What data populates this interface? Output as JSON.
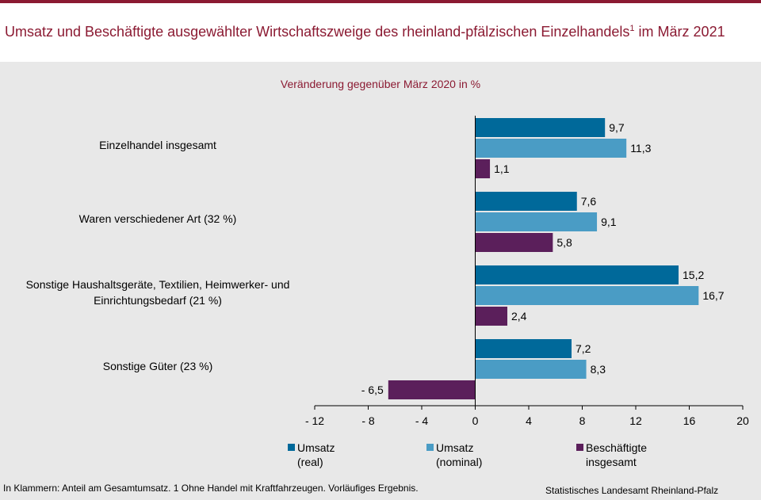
{
  "header": {
    "title": "Umsatz und Beschäftigte ausgewählter Wirtschaftszweige des rheinland-pfälzischen Einzelhandels",
    "title_sup": "1",
    "title_tail": " im März 2021"
  },
  "chart_data": {
    "type": "bar",
    "orientation": "horizontal",
    "title": "Umsatz und Beschäftigte ausgewählter Wirtschaftszweige des rheinland-pfälzischen Einzelhandels¹ im März 2021",
    "subtitle": "Veränderung gegenüber März 2020 in %",
    "categories": [
      "Einzelhandel insgesamt",
      "Waren verschiedener Art (32 %)",
      "Sonstige Haushaltsgeräte, Textilien, Heimwerker- und\nEinrichtungsbedarf (21 %)",
      "Sonstige Güter (23 %)"
    ],
    "series": [
      {
        "name": "Umsatz\n(real)",
        "color": "#00699a",
        "values": [
          9.7,
          7.6,
          15.2,
          7.2
        ],
        "labels": [
          "9,7",
          "7,6",
          "15,2",
          "7,2"
        ]
      },
      {
        "name": "Umsatz\n(nominal)",
        "color": "#4a9cc5",
        "values": [
          11.3,
          9.1,
          16.7,
          8.3
        ],
        "labels": [
          "11,3",
          "9,1",
          "16,7",
          "8,3"
        ]
      },
      {
        "name": "Beschäftigte\ninsgesamt",
        "color": "#5b1f5b",
        "values": [
          1.1,
          5.8,
          2.4,
          -6.5
        ],
        "labels": [
          "1,1",
          "5,8",
          "2,4",
          "- 6,5"
        ]
      }
    ],
    "xlim": [
      -12,
      20
    ],
    "xticks": [
      -12,
      -8,
      -4,
      0,
      4,
      8,
      12,
      16,
      20
    ],
    "xtick_labels": [
      "- 12",
      "- 8",
      "- 4",
      "0",
      "4",
      "8",
      "12",
      "16",
      "20"
    ],
    "legend_position": "bottom",
    "grid": false
  },
  "footer": {
    "footnote": "In Klammern: Anteil am Gesamtumsatz. 1 Ohne Handel mit Kraftfahrzeugen. Vorläufiges Ergebnis.",
    "source": "Statistisches Landesamt Rheinland-Pfalz"
  },
  "colors": {
    "accent": "#8b1a32",
    "background": "#e8e8e8"
  }
}
